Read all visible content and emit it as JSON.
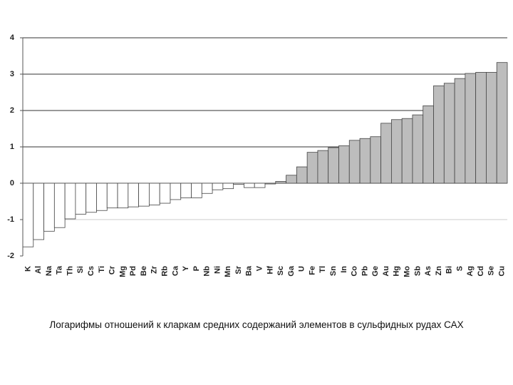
{
  "chart_data": {
    "type": "bar",
    "caption": "Логарифмы отношений к кларкам средних содержаний элементов в сульфидных рудах САХ",
    "categories": [
      "K",
      "Al",
      "Na",
      "Ta",
      "Th",
      "Si",
      "Cs",
      "Ti",
      "Cr",
      "Mg",
      "Pd",
      "Be",
      "Zr",
      "Rb",
      "Ca",
      "Y",
      "P",
      "Nb",
      "Ni",
      "Mn",
      "Sr",
      "Ba",
      "V",
      "Hf",
      "Sc",
      "Ga",
      "U",
      "Fe",
      "Tl",
      "Sn",
      "In",
      "Co",
      "Pb",
      "Ge",
      "Au",
      "Hg",
      "Mo",
      "Sb",
      "As",
      "Zn",
      "Bi",
      "S",
      "Ag",
      "Cd",
      "Se",
      "Cu"
    ],
    "values": [
      -1.75,
      -1.55,
      -1.32,
      -1.22,
      -0.98,
      -0.85,
      -0.8,
      -0.75,
      -0.68,
      -0.68,
      -0.65,
      -0.63,
      -0.6,
      -0.55,
      -0.45,
      -0.4,
      -0.4,
      -0.28,
      -0.18,
      -0.15,
      -0.03,
      -0.12,
      -0.12,
      -0.02,
      0.05,
      0.22,
      0.45,
      0.85,
      0.9,
      0.98,
      1.03,
      1.18,
      1.23,
      1.28,
      1.65,
      1.75,
      1.78,
      1.88,
      2.13,
      2.68,
      2.75,
      2.88,
      3.02,
      3.05,
      3.05,
      3.32
    ],
    "negative_color": "#ffffff",
    "positive_color": "#bdbdbd",
    "ylim": [
      -2,
      4
    ],
    "yticks": [
      -2,
      -1,
      0,
      1,
      2,
      3,
      4
    ],
    "grid": true
  }
}
